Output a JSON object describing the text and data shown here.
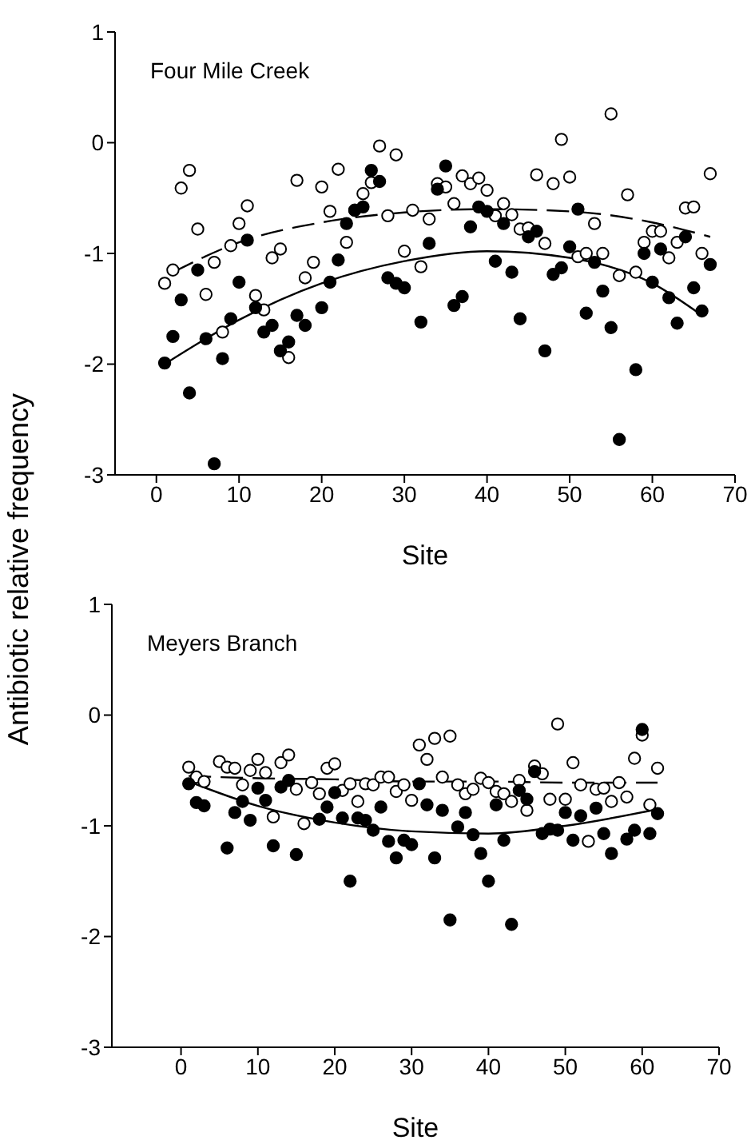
{
  "chart_data": [
    {
      "type": "scatter",
      "title": "Four Mile Creek",
      "xlabel": "Site",
      "ylabel": "Antibiotic relative frequency",
      "xlim": [
        -5,
        70
      ],
      "ylim": [
        -3,
        1
      ],
      "xticks": [
        0,
        10,
        20,
        30,
        40,
        50,
        60,
        70
      ],
      "yticks": [
        -3,
        -2,
        -1,
        0,
        1
      ],
      "marker": "circle",
      "series": [
        {
          "color": "#ffffff",
          "x": [
            1,
            2,
            3,
            4,
            5,
            6,
            7,
            8,
            9,
            10,
            11,
            12,
            13,
            14,
            15,
            16,
            17,
            18,
            19,
            20,
            21,
            22,
            23,
            24,
            25,
            26,
            27,
            28,
            29,
            30,
            31,
            32,
            33,
            34,
            35,
            36,
            37,
            38,
            39,
            40,
            41,
            42,
            43,
            44,
            45,
            46,
            47,
            48,
            49,
            50,
            51,
            52,
            53,
            54,
            55,
            56,
            57,
            58,
            59,
            60,
            61,
            62,
            63,
            64,
            65,
            66,
            67
          ],
          "values": [
            -1.27,
            -1.15,
            -0.41,
            -0.25,
            -0.78,
            -1.37,
            -1.08,
            -1.71,
            -0.93,
            -0.73,
            -0.57,
            -1.38,
            -1.51,
            -1.04,
            -0.96,
            -1.94,
            -0.34,
            -1.22,
            -1.08,
            -0.4,
            -0.62,
            -0.24,
            -0.9,
            -0.61,
            -0.46,
            -0.36,
            -0.03,
            -0.66,
            -0.11,
            -0.98,
            -0.61,
            -1.12,
            -0.69,
            -0.37,
            -0.4,
            -0.55,
            -0.3,
            -0.37,
            -0.32,
            -0.43,
            -0.66,
            -0.55,
            -0.65,
            -0.78,
            -0.77,
            -0.29,
            -0.91,
            -0.37,
            0.03,
            -0.31,
            -1.03,
            -1.0,
            -0.73,
            -1.0,
            0.26,
            -1.2,
            -0.47,
            -1.17,
            -0.9,
            -0.8,
            -0.8,
            -1.04,
            -0.9,
            -0.59,
            -0.58,
            -1.0,
            -0.28
          ]
        },
        {
          "color": "#000000",
          "x": [
            1,
            2,
            3,
            4,
            5,
            6,
            7,
            8,
            9,
            10,
            11,
            12,
            13,
            14,
            15,
            16,
            17,
            18,
            20,
            21,
            22,
            23,
            24,
            25,
            26,
            27,
            28,
            29,
            30,
            32,
            33,
            34,
            35,
            36,
            37,
            38,
            39,
            40,
            41,
            42,
            43,
            44,
            45,
            46,
            47,
            48,
            49,
            50,
            51,
            52,
            53,
            54,
            55,
            56,
            58,
            59,
            60,
            61,
            62,
            63,
            64,
            65,
            66,
            67
          ],
          "values": [
            -1.99,
            -1.75,
            -1.42,
            -2.26,
            -1.15,
            -1.77,
            -2.9,
            -1.95,
            -1.59,
            -1.26,
            -0.88,
            -1.49,
            -1.71,
            -1.65,
            -1.88,
            -1.8,
            -1.56,
            -1.65,
            -1.49,
            -1.26,
            -1.06,
            -0.73,
            -0.61,
            -0.58,
            -0.25,
            -0.35,
            -1.22,
            -1.27,
            -1.31,
            -1.62,
            -0.91,
            -0.42,
            -0.21,
            -1.47,
            -1.39,
            -0.76,
            -0.58,
            -0.62,
            -1.07,
            -0.73,
            -1.17,
            -1.59,
            -0.85,
            -0.8,
            -1.88,
            -1.19,
            -1.13,
            -0.94,
            -0.6,
            -1.54,
            -1.08,
            -1.34,
            -1.67,
            -2.68,
            -2.05,
            -1.0,
            -1.26,
            -0.96,
            -1.4,
            -1.63,
            -0.85,
            -1.31,
            -1.52,
            -1.1
          ]
        },
        {
          "type": "line",
          "color": "#000000",
          "line_style": "dashed",
          "marker": "none",
          "x": [
            2,
            10,
            20,
            30,
            40,
            50,
            60,
            67
          ],
          "values": [
            -1.17,
            -0.9,
            -0.72,
            -0.63,
            -0.6,
            -0.62,
            -0.72,
            -0.85
          ]
        },
        {
          "type": "line",
          "color": "#000000",
          "line_style": "solid",
          "marker": "none",
          "x": [
            1,
            10,
            20,
            30,
            40,
            50,
            60,
            66
          ],
          "values": [
            -2.0,
            -1.6,
            -1.27,
            -1.07,
            -0.98,
            -1.04,
            -1.27,
            -1.56
          ]
        }
      ]
    },
    {
      "type": "scatter",
      "title": "Meyers Branch",
      "xlabel": "Site",
      "xlim": [
        -9,
        70
      ],
      "ylim": [
        -3,
        1
      ],
      "xticks": [
        0,
        10,
        20,
        30,
        40,
        50,
        60,
        70
      ],
      "yticks": [
        -3,
        -2,
        -1,
        0,
        1
      ],
      "marker": "circle",
      "series": [
        {
          "color": "#ffffff",
          "x": [
            1,
            2,
            3,
            5,
            6,
            7,
            8,
            9,
            10,
            11,
            12,
            13,
            14,
            15,
            16,
            17,
            18,
            19,
            20,
            21,
            22,
            23,
            24,
            25,
            26,
            27,
            28,
            29,
            30,
            31,
            32,
            33,
            34,
            35,
            36,
            37,
            38,
            39,
            40,
            41,
            42,
            43,
            44,
            45,
            46,
            47,
            48,
            49,
            50,
            51,
            52,
            53,
            54,
            55,
            56,
            57,
            58,
            59,
            60,
            61,
            62
          ],
          "values": [
            -0.47,
            -0.56,
            -0.6,
            -0.42,
            -0.47,
            -0.48,
            -0.63,
            -0.5,
            -0.4,
            -0.52,
            -0.92,
            -0.43,
            -0.36,
            -0.67,
            -0.98,
            -0.61,
            -0.71,
            -0.48,
            -0.44,
            -0.68,
            -0.62,
            -0.78,
            -0.62,
            -0.63,
            -0.56,
            -0.56,
            -0.69,
            -0.63,
            -0.77,
            -0.27,
            -0.4,
            -0.21,
            -0.56,
            -0.19,
            -0.63,
            -0.71,
            -0.67,
            -0.57,
            -0.61,
            -0.69,
            -0.71,
            -0.78,
            -0.59,
            -0.86,
            -0.46,
            -0.53,
            -0.76,
            -0.08,
            -0.76,
            -0.43,
            -0.63,
            -1.14,
            -0.67,
            -0.66,
            -0.78,
            -0.61,
            -0.74,
            -0.39,
            -0.18,
            -0.81,
            -0.48
          ]
        },
        {
          "color": "#000000",
          "x": [
            1,
            2,
            3,
            6,
            7,
            8,
            9,
            10,
            11,
            12,
            13,
            14,
            15,
            18,
            19,
            20,
            21,
            22,
            23,
            24,
            25,
            26,
            27,
            28,
            29,
            30,
            31,
            32,
            33,
            34,
            35,
            36,
            37,
            38,
            39,
            40,
            41,
            42,
            43,
            44,
            45,
            46,
            47,
            48,
            49,
            50,
            51,
            52,
            54,
            55,
            56,
            58,
            59,
            60,
            61,
            62
          ],
          "values": [
            -0.62,
            -0.79,
            -0.82,
            -1.2,
            -0.88,
            -0.78,
            -0.95,
            -0.66,
            -0.77,
            -1.18,
            -0.65,
            -0.59,
            -1.26,
            -0.94,
            -0.83,
            -0.7,
            -0.93,
            -1.5,
            -0.93,
            -0.95,
            -1.04,
            -0.83,
            -1.14,
            -1.29,
            -1.13,
            -1.17,
            -0.62,
            -0.81,
            -1.29,
            -0.86,
            -1.85,
            -1.01,
            -0.88,
            -1.08,
            -1.25,
            -1.5,
            -0.81,
            -1.13,
            -1.89,
            -0.68,
            -0.76,
            -0.51,
            -1.07,
            -1.03,
            -1.04,
            -0.88,
            -1.13,
            -0.91,
            -0.84,
            -1.07,
            -1.25,
            -1.12,
            -1.04,
            -0.13,
            -1.07,
            -0.89
          ]
        },
        {
          "type": "line",
          "color": "#000000",
          "line_style": "dashed",
          "marker": "none",
          "x": [
            1,
            10,
            20,
            30,
            40,
            50,
            62
          ],
          "values": [
            -0.55,
            -0.57,
            -0.58,
            -0.6,
            -0.6,
            -0.61,
            -0.61
          ]
        },
        {
          "type": "line",
          "color": "#000000",
          "line_style": "solid",
          "marker": "none",
          "x": [
            1,
            10,
            20,
            30,
            40,
            50,
            62
          ],
          "values": [
            -0.6,
            -0.82,
            -0.97,
            -1.05,
            -1.07,
            -1.0,
            -0.85
          ]
        }
      ]
    }
  ]
}
